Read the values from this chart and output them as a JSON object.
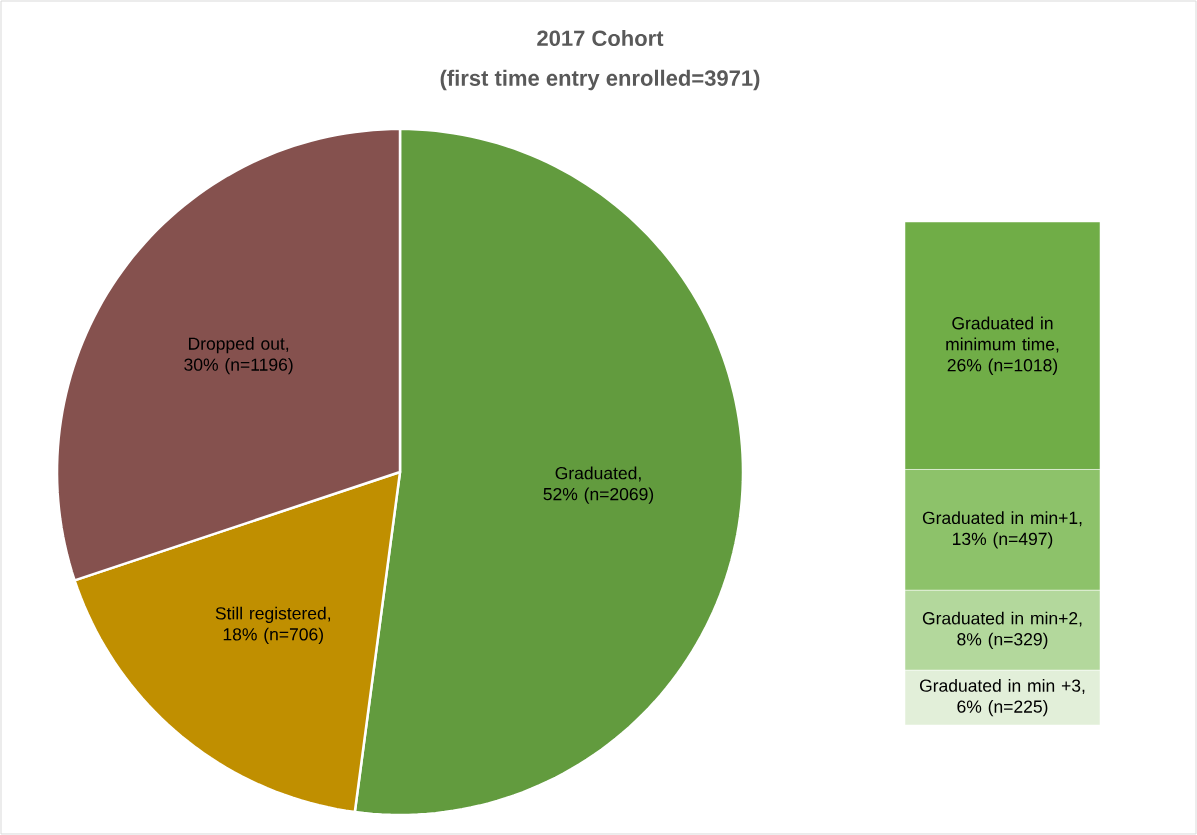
{
  "chart_data": [
    {
      "type": "pie",
      "title": "2017 Cohort",
      "subtitle": "(first time entry enrolled=3971)",
      "categories": [
        "Graduated, 52% (n=2069)",
        "Still registered, 18% (n=706)",
        "Dropped out, 30% (n=1196)"
      ],
      "values": [
        2069,
        706,
        1196
      ],
      "colors": [
        "#629b3e",
        "#c08f00",
        "#85514e"
      ],
      "legend": false
    },
    {
      "type": "bar",
      "stacked": true,
      "categories": [
        null
      ],
      "legend": false,
      "tick_labels": false,
      "series": [
        {
          "name": "Graduated in min +3,",
          "color": "#e2efd9",
          "values": [
            225
          ],
          "value_labels": [
            "6% (n=225)"
          ]
        },
        {
          "name": "Graduated in min+2,",
          "color": "#b3d89c",
          "values": [
            329
          ],
          "value_labels": [
            "8% (n=329)"
          ]
        },
        {
          "name": "Graduated in min+1,",
          "color": "#8dc26a",
          "values": [
            497
          ],
          "value_labels": [
            "13% (n=497)"
          ]
        },
        {
          "name": "Graduated in minimum time,",
          "color": "#70ad47",
          "values": [
            1018
          ],
          "value_labels": [
            "26% (n=1018)"
          ]
        }
      ]
    }
  ]
}
